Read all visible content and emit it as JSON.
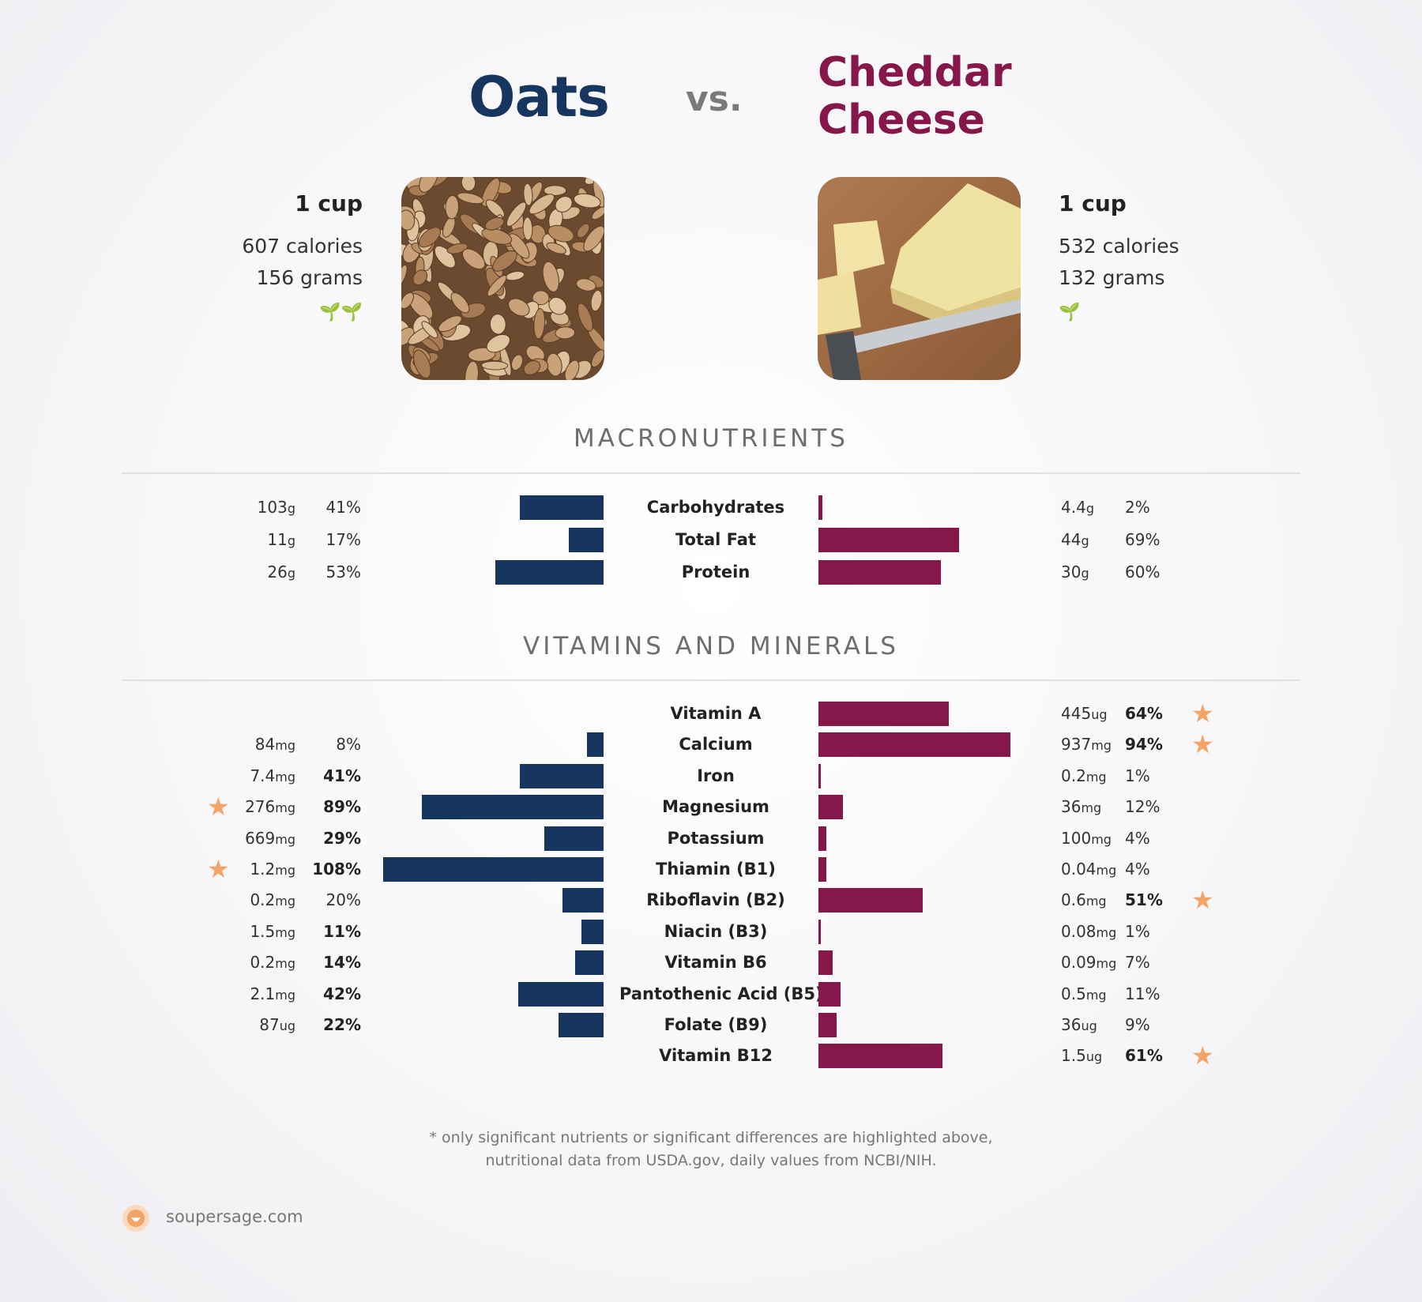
{
  "header": {
    "food_left": "Oats",
    "vs": "vs.",
    "food_right": "Cheddar Cheese"
  },
  "left": {
    "serving": "1 cup",
    "calories": "607 calories",
    "grams": "156 grams",
    "icon": "sprout-icon",
    "sprouts": "🌱🌱"
  },
  "right": {
    "serving": "1 cup",
    "calories": "532 calories",
    "grams": "132 grams",
    "icon": "sprout-icon",
    "sprouts": "🌱"
  },
  "sections": {
    "macros": "MACRONUTRIENTS",
    "vitamins": "VITAMINS AND MINERALS"
  },
  "colors": {
    "left": "#16365f",
    "right": "#85174a",
    "star": "#f4a367"
  },
  "chart_data": [
    {
      "type": "bar",
      "title": "MACRONUTRIENTS",
      "series": [
        {
          "name": "Oats"
        },
        {
          "name": "Cheddar Cheese"
        }
      ],
      "rows": [
        {
          "label": "Carbohydrates",
          "left": {
            "value": "103",
            "unit": "g",
            "pct": "41%",
            "pct_value": 41
          },
          "right": {
            "value": "4.4",
            "unit": "g",
            "pct": "2%",
            "pct_value": 2
          }
        },
        {
          "label": "Total Fat",
          "left": {
            "value": "11",
            "unit": "g",
            "pct": "17%",
            "pct_value": 17
          },
          "right": {
            "value": "44",
            "unit": "g",
            "pct": "69%",
            "pct_value": 69
          }
        },
        {
          "label": "Protein",
          "left": {
            "value": "26",
            "unit": "g",
            "pct": "53%",
            "pct_value": 53
          },
          "right": {
            "value": "30",
            "unit": "g",
            "pct": "60%",
            "pct_value": 60
          }
        }
      ]
    },
    {
      "type": "bar",
      "title": "VITAMINS AND MINERALS",
      "series": [
        {
          "name": "Oats"
        },
        {
          "name": "Cheddar Cheese"
        }
      ],
      "rows": [
        {
          "label": "Vitamin A",
          "left": null,
          "right": {
            "value": "445",
            "unit": "ug",
            "pct": "64%",
            "pct_value": 64,
            "bold": true,
            "star": true
          }
        },
        {
          "label": "Calcium",
          "left": {
            "value": "84",
            "unit": "mg",
            "pct": "8%",
            "pct_value": 8
          },
          "right": {
            "value": "937",
            "unit": "mg",
            "pct": "94%",
            "pct_value": 94,
            "bold": true,
            "star": true
          }
        },
        {
          "label": "Iron",
          "left": {
            "value": "7.4",
            "unit": "mg",
            "pct": "41%",
            "pct_value": 41,
            "bold": true
          },
          "right": {
            "value": "0.2",
            "unit": "mg",
            "pct": "1%",
            "pct_value": 1
          }
        },
        {
          "label": "Magnesium",
          "left": {
            "value": "276",
            "unit": "mg",
            "pct": "89%",
            "pct_value": 89,
            "bold": true,
            "star": true
          },
          "right": {
            "value": "36",
            "unit": "mg",
            "pct": "12%",
            "pct_value": 12
          }
        },
        {
          "label": "Potassium",
          "left": {
            "value": "669",
            "unit": "mg",
            "pct": "29%",
            "pct_value": 29,
            "bold": true
          },
          "right": {
            "value": "100",
            "unit": "mg",
            "pct": "4%",
            "pct_value": 4
          }
        },
        {
          "label": "Thiamin (B1)",
          "left": {
            "value": "1.2",
            "unit": "mg",
            "pct": "108%",
            "pct_value": 108,
            "bold": true,
            "star": true
          },
          "right": {
            "value": "0.04",
            "unit": "mg",
            "pct": "4%",
            "pct_value": 4
          }
        },
        {
          "label": "Riboflavin (B2)",
          "left": {
            "value": "0.2",
            "unit": "mg",
            "pct": "20%",
            "pct_value": 20
          },
          "right": {
            "value": "0.6",
            "unit": "mg",
            "pct": "51%",
            "pct_value": 51,
            "bold": true,
            "star": true
          }
        },
        {
          "label": "Niacin (B3)",
          "left": {
            "value": "1.5",
            "unit": "mg",
            "pct": "11%",
            "pct_value": 11,
            "bold": true
          },
          "right": {
            "value": "0.08",
            "unit": "mg",
            "pct": "1%",
            "pct_value": 1
          }
        },
        {
          "label": "Vitamin B6",
          "left": {
            "value": "0.2",
            "unit": "mg",
            "pct": "14%",
            "pct_value": 14,
            "bold": true
          },
          "right": {
            "value": "0.09",
            "unit": "mg",
            "pct": "7%",
            "pct_value": 7
          }
        },
        {
          "label": "Pantothenic Acid (B5)",
          "left": {
            "value": "2.1",
            "unit": "mg",
            "pct": "42%",
            "pct_value": 42,
            "bold": true
          },
          "right": {
            "value": "0.5",
            "unit": "mg",
            "pct": "11%",
            "pct_value": 11
          }
        },
        {
          "label": "Folate (B9)",
          "left": {
            "value": "87",
            "unit": "ug",
            "pct": "22%",
            "pct_value": 22,
            "bold": true
          },
          "right": {
            "value": "36",
            "unit": "ug",
            "pct": "9%",
            "pct_value": 9
          }
        },
        {
          "label": "Vitamin B12",
          "left": null,
          "right": {
            "value": "1.5",
            "unit": "ug",
            "pct": "61%",
            "pct_value": 61,
            "bold": true,
            "star": true
          }
        }
      ]
    }
  ],
  "footnote": [
    "* only significant nutrients or significant differences are highlighted above,",
    "nutritional data from USDA.gov, daily values from NCBI/NIH."
  ],
  "brand": "soupersage.com"
}
